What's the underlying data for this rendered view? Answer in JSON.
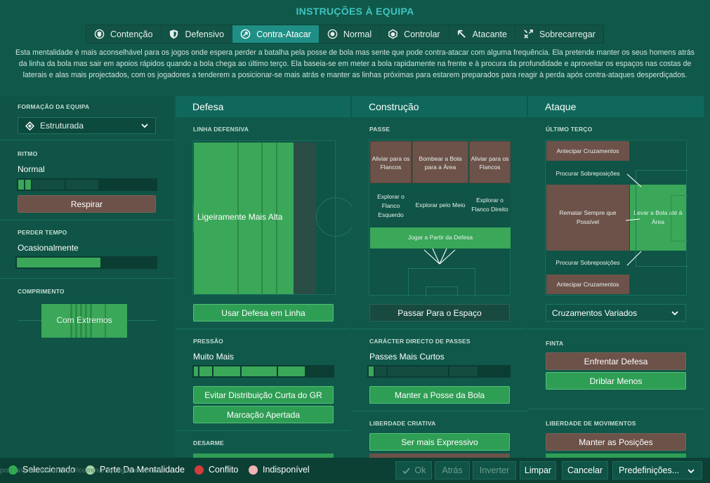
{
  "title": "INSTRUÇÕES À EQUIPA",
  "mentalities": [
    {
      "label": "Contenção",
      "icon": "shield-ring-icon"
    },
    {
      "label": "Defensivo",
      "icon": "shield-icon"
    },
    {
      "label": "Contra-Atacar",
      "icon": "counter-arrow-icon",
      "active": true
    },
    {
      "label": "Normal",
      "icon": "ball-icon"
    },
    {
      "label": "Controlar",
      "icon": "hexagon-icon"
    },
    {
      "label": "Atacante",
      "icon": "attack-arrow-icon"
    },
    {
      "label": "Sobrecarregar",
      "icon": "overload-arrows-icon"
    }
  ],
  "description": "Esta mentalidade é mais aconselhável para os jogos onde espera perder a batalha pela posse de bola mas sente que pode contra-atacar com alguma frequência. Ela pretende manter os seus homens atrás da linha da bola mas sair em apoios rápidos quando a bola chega ao último terço. Ela baseia-se em meter a bola rapidamente na frente e à procura da profundidade e aproveitar os espaços nas costas de laterais e alas mais projectados, com os jogadores a tenderem a posicionar-se mais atrás e manter as linhas próximas para estarem preparados para reagir à perda após contra-ataques desperdiçados.",
  "left": {
    "formation_label": "FORMAÇÃO DA EQUIPA",
    "formation_value": "Estruturada",
    "tempo_label": "RITMO",
    "tempo_value": "Normal",
    "tempo_level": 0.15,
    "tempo_button": "Respirar",
    "timewaste_label": "PERDER TEMPO",
    "timewaste_value": "Ocasionalmente",
    "timewaste_level": 0.6,
    "width_label": "COMPRIMENTO",
    "width_value": "Com Extremos"
  },
  "defence": {
    "header": "Defesa",
    "line_label": "LINHA DEFENSIVA",
    "line_value": "Ligeiramente Mais Alta",
    "line_button": "Usar Defesa em Linha",
    "press_label": "PRESSÃO",
    "press_value": "Muito Mais",
    "press_level": 0.8,
    "buttons": [
      "Evitar Distribuição Curta do GR",
      "Marcação Apertada"
    ],
    "tackle_label": "DESARME"
  },
  "build": {
    "header": "Construção",
    "passing_label": "PASSE",
    "zones": {
      "left_flank": "Aliviar para os Flancos",
      "center_long": "Bombear a Bola para a Área",
      "right_flank": "Aliviar para os Flancos",
      "explore_left": "Explorar o Flanco Esquerdo",
      "explore_middle": "Explorar pelo Meio",
      "explore_right": "Explorar o Flanco Direito",
      "play_out": "Jogar a Partir da Defesa"
    },
    "space_button": "Passar Para o Espaço",
    "directness_label": "CARÁCTER DIRECTO DE PASSES",
    "directness_value": "Passes Mais Curtos",
    "directness_level": 0.05,
    "possession_button": "Manter a Posse da Bola",
    "creative_label": "LIBERDADE CRIATIVA",
    "creative_button": "Ser mais Expressivo"
  },
  "attack": {
    "header": "Ataque",
    "final_third_label": "ÚLTIMO TERÇO",
    "zones": {
      "early_cross_top": "Antecipar Cruzamentos",
      "overlap_top": "Procurar Sobreposições",
      "shoot_on_sight": "Rematar Sempre que Possível",
      "work_into_box": "Levar a Bola até à Área",
      "overlap_bottom": "Procurar Sobreposições",
      "early_cross_bottom": "Antecipar Cruzamentos"
    },
    "crossing_select": "Cruzamentos Variados",
    "dribble_label": "FINTA",
    "dribble_buttons": [
      "Enfrentar Defesa",
      "Driblar Menos"
    ],
    "movement_label": "LIBERDADE DE MOVIMENTOS",
    "movement_button": "Manter as Posições"
  },
  "legend": [
    {
      "label": "Seleccionado",
      "color": "#2fb04f"
    },
    {
      "label": "Parte Da Mentalidade",
      "color": "#a8d8a8"
    },
    {
      "label": "Conflito",
      "color": "#d23c3c"
    },
    {
      "label": "Indisponível",
      "color": "#f0b4b4"
    }
  ],
  "footer": {
    "ok": "Ok",
    "undo": "Atrás",
    "redo": "Inverter",
    "clear": "Limpar",
    "cancel": "Cancelar",
    "presets": "Predefinições..."
  },
  "url_overlay": "port any issues at http://community.sigames.com/"
}
